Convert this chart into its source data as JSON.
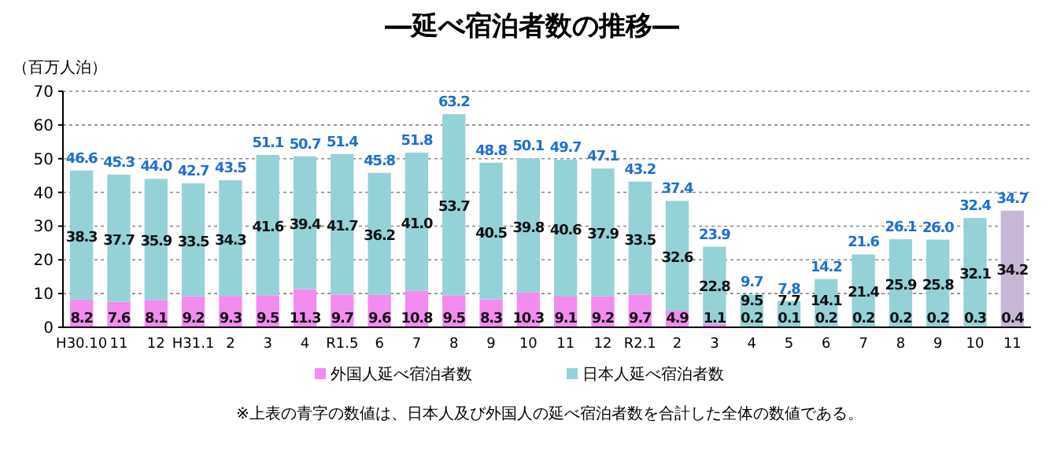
{
  "chart_data": {
    "type": "bar",
    "stacked": true,
    "title": "―延べ宿泊者数の推移―",
    "ylabel": "（百万人泊）",
    "categories": [
      "H30.10",
      "11",
      "12",
      "H31.1",
      "2",
      "3",
      "4",
      "R1.5",
      "6",
      "7",
      "8",
      "9",
      "10",
      "11",
      "12",
      "R2.1",
      "2",
      "3",
      "4",
      "5",
      "6",
      "7",
      "8",
      "9",
      "10",
      "11"
    ],
    "series": [
      {
        "name": "外国人延べ宿泊者数",
        "color": "#f28cef",
        "value_labels": [
          "8.2",
          "7.6",
          "8.1",
          "9.2",
          "9.3",
          "9.5",
          "11.3",
          "9.7",
          "9.6",
          "10.8",
          "9.5",
          "8.3",
          "10.3",
          "9.1",
          "9.2",
          "9.7",
          "4.9",
          "1.1",
          "0.2",
          "0.1",
          "0.2",
          "0.2",
          "0.2",
          "0.2",
          "0.3",
          "0.4"
        ],
        "values": [
          8.2,
          7.6,
          8.1,
          9.2,
          9.3,
          9.5,
          11.3,
          9.7,
          9.6,
          10.8,
          9.5,
          8.3,
          10.3,
          9.1,
          9.2,
          9.7,
          4.9,
          1.1,
          0.2,
          0.1,
          0.2,
          0.2,
          0.2,
          0.2,
          0.3,
          0.4
        ]
      },
      {
        "name": "日本人延べ宿泊者数",
        "color": "#95d2d8",
        "value_labels": [
          "38.3",
          "37.7",
          "35.9",
          "33.5",
          "34.3",
          "41.6",
          "39.4",
          "41.7",
          "36.2",
          "41.0",
          "53.7",
          "40.5",
          "39.8",
          "40.6",
          "37.9",
          "33.5",
          "32.6",
          "22.8",
          "9.5",
          "7.7",
          "14.1",
          "21.4",
          "25.9",
          "25.8",
          "32.1",
          "34.2"
        ],
        "colors": [
          "#95d2d8",
          "#95d2d8",
          "#95d2d8",
          "#95d2d8",
          "#95d2d8",
          "#95d2d8",
          "#95d2d8",
          "#95d2d8",
          "#95d2d8",
          "#95d2d8",
          "#95d2d8",
          "#95d2d8",
          "#95d2d8",
          "#95d2d8",
          "#95d2d8",
          "#95d2d8",
          "#95d2d8",
          "#95d2d8",
          "#95d2d8",
          "#95d2d8",
          "#95d2d8",
          "#95d2d8",
          "#95d2d8",
          "#95d2d8",
          "#95d2d8",
          "#c8b6d6"
        ],
        "values": [
          38.3,
          37.7,
          35.9,
          33.5,
          34.3,
          41.6,
          39.4,
          41.7,
          36.2,
          41.0,
          53.7,
          40.5,
          39.8,
          40.6,
          37.9,
          33.5,
          32.6,
          22.8,
          9.5,
          7.7,
          14.1,
          21.4,
          25.9,
          25.8,
          32.1,
          34.2
        ]
      }
    ],
    "totals": [
      "46.6",
      "45.3",
      "44.0",
      "42.7",
      "43.5",
      "51.1",
      "50.7",
      "51.4",
      "45.8",
      "51.8",
      "63.2",
      "48.8",
      "50.1",
      "49.7",
      "47.1",
      "43.2",
      "37.4",
      "23.9",
      "9.7",
      "7.8",
      "14.2",
      "21.6",
      "26.1",
      "26.0",
      "32.4",
      "34.7"
    ],
    "ylim": [
      0,
      70
    ],
    "yticks": [
      0,
      10,
      20,
      30,
      40,
      50,
      60,
      70
    ],
    "grid": "y",
    "legend": "bottom",
    "annotations": [
      "※上表の青字の数値は、日本人及び外国人の延べ宿泊者数を合計した全体の数値である。"
    ]
  }
}
